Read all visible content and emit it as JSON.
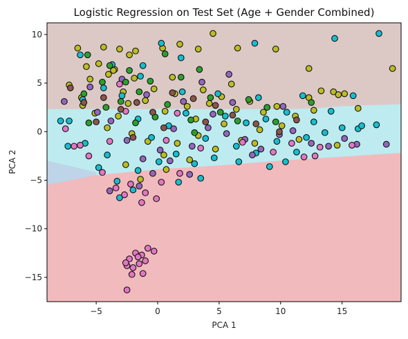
{
  "chart_data": {
    "type": "scatter",
    "title": "Logistic Regression on Test Set (Age + Gender Combined)",
    "xlabel": "PCA 1",
    "ylabel": "PCA 2",
    "xlim": [
      -9,
      19.8
    ],
    "ylim": [
      -17.5,
      11.2
    ],
    "xticks": [
      -5,
      0,
      5,
      10,
      15
    ],
    "xtick_labels": [
      "−5",
      "0",
      "5",
      "10",
      "15"
    ],
    "yticks": [
      10,
      5,
      0,
      -5,
      -10,
      -15
    ],
    "ytick_labels": [
      "10",
      "5",
      "0",
      "−5",
      "−10",
      "−15"
    ],
    "grid": false,
    "legend": "none",
    "decision_regions": [
      {
        "color": "#dcc9c6",
        "polygon": [
          [
            -9,
            11.2
          ],
          [
            19.8,
            11.2
          ],
          [
            19.8,
            2.8
          ],
          [
            17,
            2.7
          ],
          [
            15,
            2.6
          ],
          [
            13,
            2.4
          ],
          [
            10.5,
            2.3
          ],
          [
            -9,
            2.3
          ]
        ]
      },
      {
        "color": "#bdebf0",
        "polygon": [
          [
            -9,
            2.3
          ],
          [
            10.5,
            2.3
          ],
          [
            13,
            2.4
          ],
          [
            15,
            2.6
          ],
          [
            17,
            2.7
          ],
          [
            19.8,
            2.8
          ],
          [
            19.8,
            -2.2
          ],
          [
            15,
            -2.6
          ],
          [
            10,
            -3.0
          ],
          [
            5,
            -3.5
          ],
          [
            0,
            -3.9
          ],
          [
            -5,
            -4.5
          ],
          [
            -9,
            -5.5
          ],
          [
            -9,
            -3.0
          ],
          [
            -5,
            -4.2
          ],
          [
            -9,
            -2.95
          ]
        ]
      },
      {
        "color": "#bed4e8",
        "polygon": [
          [
            -9,
            -3.0
          ],
          [
            -5,
            -4.2
          ],
          [
            -5,
            -4.5
          ],
          [
            -9,
            -5.5
          ]
        ]
      },
      {
        "color": "#f1babd",
        "polygon": [
          [
            -9,
            -5.5
          ],
          [
            -5,
            -4.5
          ],
          [
            0,
            -3.9
          ],
          [
            5,
            -3.5
          ],
          [
            10,
            -3.0
          ],
          [
            15,
            -2.6
          ],
          [
            19.8,
            -2.2
          ],
          [
            19.8,
            -17.5
          ],
          [
            -9,
            -17.5
          ]
        ]
      }
    ],
    "series": [
      {
        "color": "#bcbd22",
        "points": [
          [
            -6.5,
            8.6
          ],
          [
            -4.4,
            8.7
          ],
          [
            -3.1,
            8.5
          ],
          [
            -2.3,
            7.9
          ],
          [
            -1.8,
            8.3
          ],
          [
            0.4,
            8.6
          ],
          [
            1.8,
            9.0
          ],
          [
            3.3,
            8.5
          ],
          [
            4.5,
            10.1
          ],
          [
            6.5,
            8.6
          ],
          [
            9.6,
            8.5
          ],
          [
            12.3,
            6.5
          ],
          [
            14.3,
            4.1
          ],
          [
            14.7,
            3.8
          ],
          [
            15.2,
            3.9
          ],
          [
            16.3,
            2.4
          ],
          [
            19.1,
            6.5
          ],
          [
            -7.2,
            4.8
          ],
          [
            -5.8,
            6.7
          ],
          [
            -6.2,
            3.5
          ],
          [
            -5.5,
            5.4
          ],
          [
            -4.8,
            7.0
          ],
          [
            -4.0,
            5.9
          ],
          [
            -3.5,
            6.4
          ],
          [
            -2.8,
            4.1
          ],
          [
            -1.9,
            5.5
          ],
          [
            -1.0,
            3.2
          ],
          [
            -0.3,
            4.4
          ],
          [
            0.6,
            2.1
          ],
          [
            1.4,
            3.9
          ],
          [
            2.4,
            2.6
          ],
          [
            3.1,
            1.3
          ],
          [
            4.2,
            2.9
          ],
          [
            5.2,
            3.6
          ],
          [
            6.4,
            2.3
          ],
          [
            7.5,
            3.1
          ],
          [
            8.6,
            2.0
          ],
          [
            9.7,
            2.6
          ],
          [
            11.2,
            1.6
          ],
          [
            12.3,
            3.5
          ],
          [
            13.3,
            4.2
          ],
          [
            12.7,
            2.2
          ],
          [
            10.1,
            0.6
          ],
          [
            8.3,
            0.2
          ],
          [
            6.8,
            -0.9
          ],
          [
            4.7,
            -1.8
          ],
          [
            3.3,
            -0.4
          ],
          [
            1.6,
            -1.2
          ],
          [
            0.5,
            -2.4
          ],
          [
            -0.8,
            -1.0
          ],
          [
            -2.1,
            -0.2
          ],
          [
            -3.2,
            1.6
          ],
          [
            -4.1,
            0.4
          ],
          [
            -5.1,
            1.9
          ],
          [
            -6.1,
            2.7
          ],
          [
            -2.6,
            -3.4
          ],
          [
            -1.4,
            -4.9
          ],
          [
            0.7,
            -3.9
          ],
          [
            2.6,
            -2.9
          ],
          [
            5.4,
            0.8
          ],
          [
            7.9,
            -1.2
          ],
          [
            11.5,
            -0.8
          ],
          [
            14.6,
            -1.4
          ],
          [
            -3.6,
            6.3
          ],
          [
            -2.4,
            2.9
          ],
          [
            1.2,
            5.6
          ],
          [
            3.7,
            4.3
          ],
          [
            6.0,
            4.9
          ]
        ]
      },
      {
        "color": "#17becf",
        "points": [
          [
            -6.3,
            7.9
          ],
          [
            -3.7,
            6.9
          ],
          [
            -1.2,
            6.8
          ],
          [
            0.3,
            9.1
          ],
          [
            1.9,
            7.6
          ],
          [
            7.9,
            9.1
          ],
          [
            14.4,
            9.6
          ],
          [
            18.0,
            10.1
          ],
          [
            15.9,
            3.7
          ],
          [
            17.8,
            0.7
          ],
          [
            16.3,
            0.3
          ],
          [
            15.0,
            0.4
          ],
          [
            13.6,
            -0.1
          ],
          [
            12.1,
            -0.6
          ],
          [
            11.3,
            -2.1
          ],
          [
            9.7,
            -1.0
          ],
          [
            8.0,
            -2.2
          ],
          [
            6.4,
            -1.5
          ],
          [
            4.6,
            -2.7
          ],
          [
            3.0,
            -3.3
          ],
          [
            1.5,
            -2.3
          ],
          [
            0.1,
            -3.1
          ],
          [
            -1.6,
            -4.0
          ],
          [
            -3.3,
            -5.1
          ],
          [
            -4.8,
            -3.7
          ],
          [
            -5.9,
            -1.2
          ],
          [
            -7.2,
            1.1
          ],
          [
            -6.1,
            3.3
          ],
          [
            -4.4,
            4.5
          ],
          [
            -2.9,
            3.7
          ],
          [
            -1.6,
            1.3
          ],
          [
            -0.5,
            -0.6
          ],
          [
            0.9,
            0.6
          ],
          [
            2.3,
            1.9
          ],
          [
            3.9,
            -0.7
          ],
          [
            5.5,
            1.6
          ],
          [
            7.2,
            0.9
          ],
          [
            8.8,
            1.3
          ],
          [
            10.5,
            2.0
          ],
          [
            12.7,
            1.0
          ],
          [
            14.1,
            2.1
          ],
          [
            -3.1,
            -6.8
          ],
          [
            -2.0,
            -6.0
          ],
          [
            1.7,
            -5.2
          ],
          [
            3.5,
            -4.8
          ],
          [
            6.6,
            -3.1
          ],
          [
            9.1,
            -3.6
          ],
          [
            10.4,
            -3.1
          ],
          [
            16.6,
            0.6
          ],
          [
            -7.9,
            1.1
          ],
          [
            -7.3,
            -1.5
          ],
          [
            -4.1,
            -2.4
          ],
          [
            -1.4,
            5.7
          ],
          [
            2.0,
            4.1
          ],
          [
            4.9,
            3.9
          ],
          [
            8.2,
            3.5
          ],
          [
            11.8,
            3.7
          ]
        ]
      },
      {
        "color": "#9467bd",
        "points": [
          [
            -7.6,
            3.1
          ],
          [
            -5.5,
            4.6
          ],
          [
            -4.9,
            2.0
          ],
          [
            -3.8,
            1.1
          ],
          [
            -2.5,
            -0.9
          ],
          [
            -1.2,
            -2.8
          ],
          [
            0.2,
            -1.9
          ],
          [
            1.3,
            0.3
          ],
          [
            2.8,
            -1.5
          ],
          [
            4.1,
            0.4
          ],
          [
            5.6,
            -0.2
          ],
          [
            7.1,
            -0.8
          ],
          [
            8.4,
            -1.8
          ],
          [
            9.9,
            -0.3
          ],
          [
            11.0,
            0.1
          ],
          [
            12.5,
            -1.2
          ],
          [
            13.9,
            -1.5
          ],
          [
            15.2,
            -0.7
          ],
          [
            16.2,
            -1.3
          ],
          [
            18.6,
            -1.3
          ],
          [
            -1.5,
            -5.6
          ],
          [
            -0.4,
            -4.3
          ],
          [
            1.0,
            -3.0
          ],
          [
            4.5,
            1.8
          ],
          [
            6.1,
            3.0
          ],
          [
            5.8,
            5.9
          ],
          [
            3.6,
            5.1
          ],
          [
            2.1,
            3.1
          ],
          [
            -0.9,
            3.8
          ],
          [
            -2.9,
            5.4
          ],
          [
            10.2,
            2.6
          ],
          [
            -3.9,
            -6.1
          ],
          [
            2.6,
            -4.4
          ],
          [
            7.7,
            -2.4
          ]
        ]
      },
      {
        "color": "#e377c2",
        "points": [
          [
            -7.5,
            0.3
          ],
          [
            -6.8,
            -1.5
          ],
          [
            -6.3,
            -1.4
          ],
          [
            -5.6,
            -2.5
          ],
          [
            -4.5,
            -4.2
          ],
          [
            -3.4,
            -5.8
          ],
          [
            -2.2,
            -5.4
          ],
          [
            -1.0,
            -6.3
          ],
          [
            0.3,
            -5.2
          ],
          [
            1.8,
            -4.3
          ],
          [
            -1.3,
            -7.3
          ],
          [
            -2.7,
            -6.5
          ],
          [
            -0.1,
            -6.9
          ],
          [
            -2.3,
            -13.1
          ],
          [
            -1.8,
            -12.5
          ],
          [
            -2.5,
            -13.8
          ],
          [
            -1.3,
            -12.7
          ],
          [
            -1.0,
            -13.3
          ],
          [
            -2.0,
            -14.0
          ],
          [
            -1.5,
            -13.6
          ],
          [
            -2.1,
            -14.7
          ],
          [
            -1.2,
            -14.6
          ],
          [
            -2.6,
            -13.5
          ],
          [
            -0.8,
            -12.0
          ],
          [
            -0.3,
            -12.3
          ],
          [
            -2.5,
            -16.3
          ],
          [
            -1.6,
            -12.9
          ],
          [
            -3.9,
            -1.0
          ],
          [
            -2.6,
            2.1
          ],
          [
            0.7,
            -0.9
          ],
          [
            3.5,
            -1.7
          ],
          [
            6.9,
            -1.1
          ],
          [
            9.4,
            -2.1
          ],
          [
            11.9,
            -2.6
          ],
          [
            12.8,
            -2.5
          ],
          [
            13.2,
            -1.6
          ],
          [
            10.9,
            -1.2
          ],
          [
            15.8,
            -1.4
          ],
          [
            -3.1,
            4.9
          ],
          [
            1.6,
            1.9
          ]
        ]
      },
      {
        "color": "#2ca02c",
        "points": [
          [
            -5.7,
            7.9
          ],
          [
            -3.9,
            6.8
          ],
          [
            -2.6,
            5.1
          ],
          [
            -1.5,
            4.1
          ],
          [
            0.6,
            8.0
          ],
          [
            3.4,
            6.4
          ],
          [
            4.3,
            3.5
          ],
          [
            1.9,
            5.6
          ],
          [
            -0.6,
            5.2
          ],
          [
            -4.5,
            5.1
          ],
          [
            -6.0,
            3.9
          ],
          [
            -3.0,
            3.1
          ],
          [
            -1.8,
            0.9
          ],
          [
            0.8,
            2.8
          ],
          [
            2.7,
            1.2
          ],
          [
            5.1,
            2.0
          ],
          [
            7.4,
            3.3
          ],
          [
            8.9,
            2.5
          ],
          [
            6.5,
            1.1
          ],
          [
            3.0,
            -0.1
          ],
          [
            -0.2,
            1.5
          ],
          [
            -4.2,
            2.5
          ],
          [
            -5.6,
            0.9
          ],
          [
            9.6,
            1.0
          ],
          [
            12.5,
            3.0
          ],
          [
            -2.3,
            6.3
          ]
        ]
      },
      {
        "color": "#8c564b",
        "points": [
          [
            -7.1,
            4.5
          ],
          [
            -6.0,
            3.0
          ],
          [
            -4.4,
            3.5
          ],
          [
            -3.0,
            2.3
          ],
          [
            -1.7,
            3.0
          ],
          [
            -0.4,
            2.0
          ],
          [
            1.2,
            4.0
          ],
          [
            2.9,
            3.4
          ],
          [
            4.7,
            2.7
          ],
          [
            6.1,
            1.7
          ],
          [
            8.0,
            0.8
          ],
          [
            3.9,
            1.0
          ],
          [
            0.5,
            0.4
          ],
          [
            -2.0,
            -0.6
          ],
          [
            -5.0,
            1.0
          ],
          [
            9.9,
            0.0
          ],
          [
            11.3,
            1.2
          ]
        ]
      }
    ]
  }
}
